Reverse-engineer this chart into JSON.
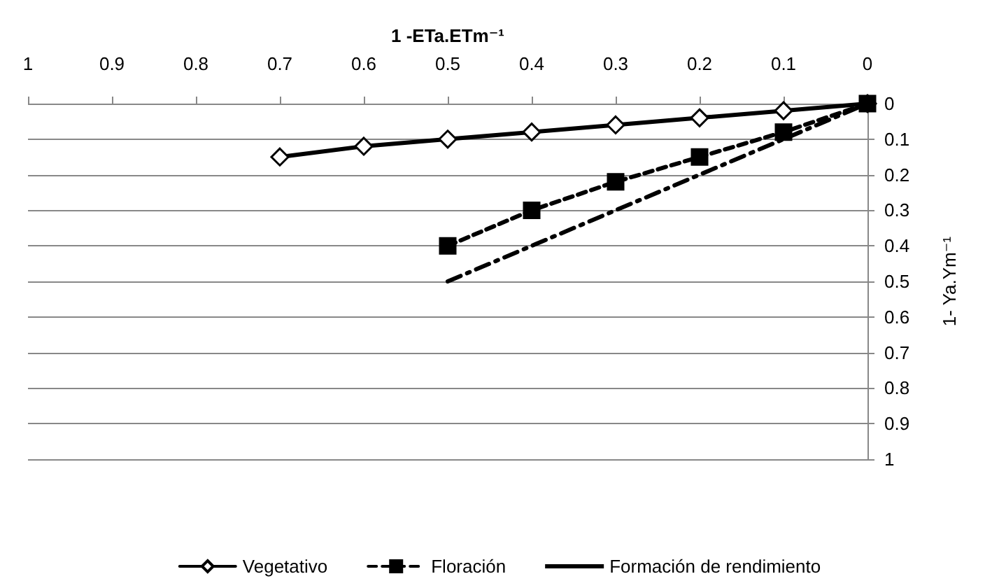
{
  "chart_data": {
    "type": "line",
    "xlabel": "1 -ETa.ETm⁻¹",
    "ylabel": "1- Ya.Ym⁻¹",
    "xlim": [
      1,
      0
    ],
    "xticks": [
      1,
      0.9,
      0.8,
      0.7,
      0.6,
      0.5,
      0.4,
      0.3,
      0.2,
      0.1,
      0
    ],
    "ylim": [
      1,
      0
    ],
    "yticks": [
      0,
      0.1,
      0.2,
      0.3,
      0.4,
      0.5,
      0.6,
      0.7,
      0.8,
      0.9,
      1
    ],
    "grid": "y",
    "legend": "bottom",
    "series": [
      {
        "name": "Vegetativo",
        "color": "#000000",
        "marker": "diamond",
        "line_style": "solid",
        "x": [
          0.7,
          0.6,
          0.5,
          0.4,
          0.3,
          0.2,
          0.1,
          0
        ],
        "values": [
          0.15,
          0.12,
          0.1,
          0.08,
          0.06,
          0.04,
          0.02,
          0
        ]
      },
      {
        "name": "Floración",
        "color": "#000000",
        "marker": "square",
        "line_style": "dashed",
        "x": [
          0.5,
          0.4,
          0.3,
          0.2,
          0.1,
          0
        ],
        "values": [
          0.4,
          0.3,
          0.22,
          0.15,
          0.08,
          0
        ]
      },
      {
        "name": "Formación de rendimiento",
        "color": "#000000",
        "marker": "none",
        "line_style": "dashdot",
        "x": [
          0.5,
          0
        ],
        "values": [
          0.5,
          0
        ]
      }
    ]
  }
}
